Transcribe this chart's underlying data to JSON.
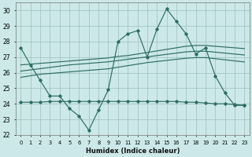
{
  "xlabel": "Humidex (Indice chaleur)",
  "x_values": [
    0,
    1,
    2,
    3,
    4,
    5,
    6,
    7,
    8,
    9,
    10,
    11,
    12,
    13,
    14,
    15,
    16,
    17,
    18,
    19,
    20,
    21,
    22,
    23
  ],
  "line_jagged": [
    27.6,
    26.5,
    25.5,
    24.5,
    24.5,
    23.7,
    23.2,
    22.3,
    23.6,
    24.9,
    28.0,
    28.5,
    28.7,
    27.0,
    28.8,
    30.1,
    29.3,
    28.5,
    27.2,
    27.6,
    25.8,
    24.7,
    23.9,
    23.9
  ],
  "line_upper": [
    26.5,
    26.55,
    26.6,
    26.65,
    26.7,
    26.75,
    26.8,
    26.85,
    26.9,
    26.95,
    27.05,
    27.1,
    27.2,
    27.3,
    27.4,
    27.5,
    27.6,
    27.7,
    27.75,
    27.75,
    27.7,
    27.65,
    27.6,
    27.55
  ],
  "line_mid": [
    26.1,
    26.18,
    26.26,
    26.34,
    26.42,
    26.5,
    26.55,
    26.6,
    26.65,
    26.7,
    26.78,
    26.86,
    26.94,
    27.02,
    27.1,
    27.18,
    27.26,
    27.34,
    27.38,
    27.38,
    27.32,
    27.26,
    27.2,
    27.14
  ],
  "line_lower_trend": [
    25.7,
    25.8,
    25.9,
    25.95,
    26.0,
    26.05,
    26.1,
    26.15,
    26.2,
    26.25,
    26.35,
    26.45,
    26.55,
    26.65,
    26.72,
    26.79,
    26.86,
    26.93,
    26.97,
    26.97,
    26.9,
    26.83,
    26.76,
    26.69
  ],
  "line_flat": [
    24.1,
    24.1,
    24.1,
    24.15,
    24.15,
    24.15,
    24.15,
    24.15,
    24.15,
    24.15,
    24.15,
    24.15,
    24.15,
    24.15,
    24.15,
    24.15,
    24.15,
    24.1,
    24.1,
    24.05,
    24.0,
    24.0,
    23.95,
    23.9
  ],
  "line_color": "#2d6e63",
  "bg_color": "#cce8e8",
  "grid_color": "#9dbfbf",
  "ylim": [
    22,
    30.5
  ],
  "yticks": [
    22,
    23,
    24,
    25,
    26,
    27,
    28,
    29,
    30
  ],
  "figsize": [
    3.2,
    2.0
  ],
  "dpi": 100
}
